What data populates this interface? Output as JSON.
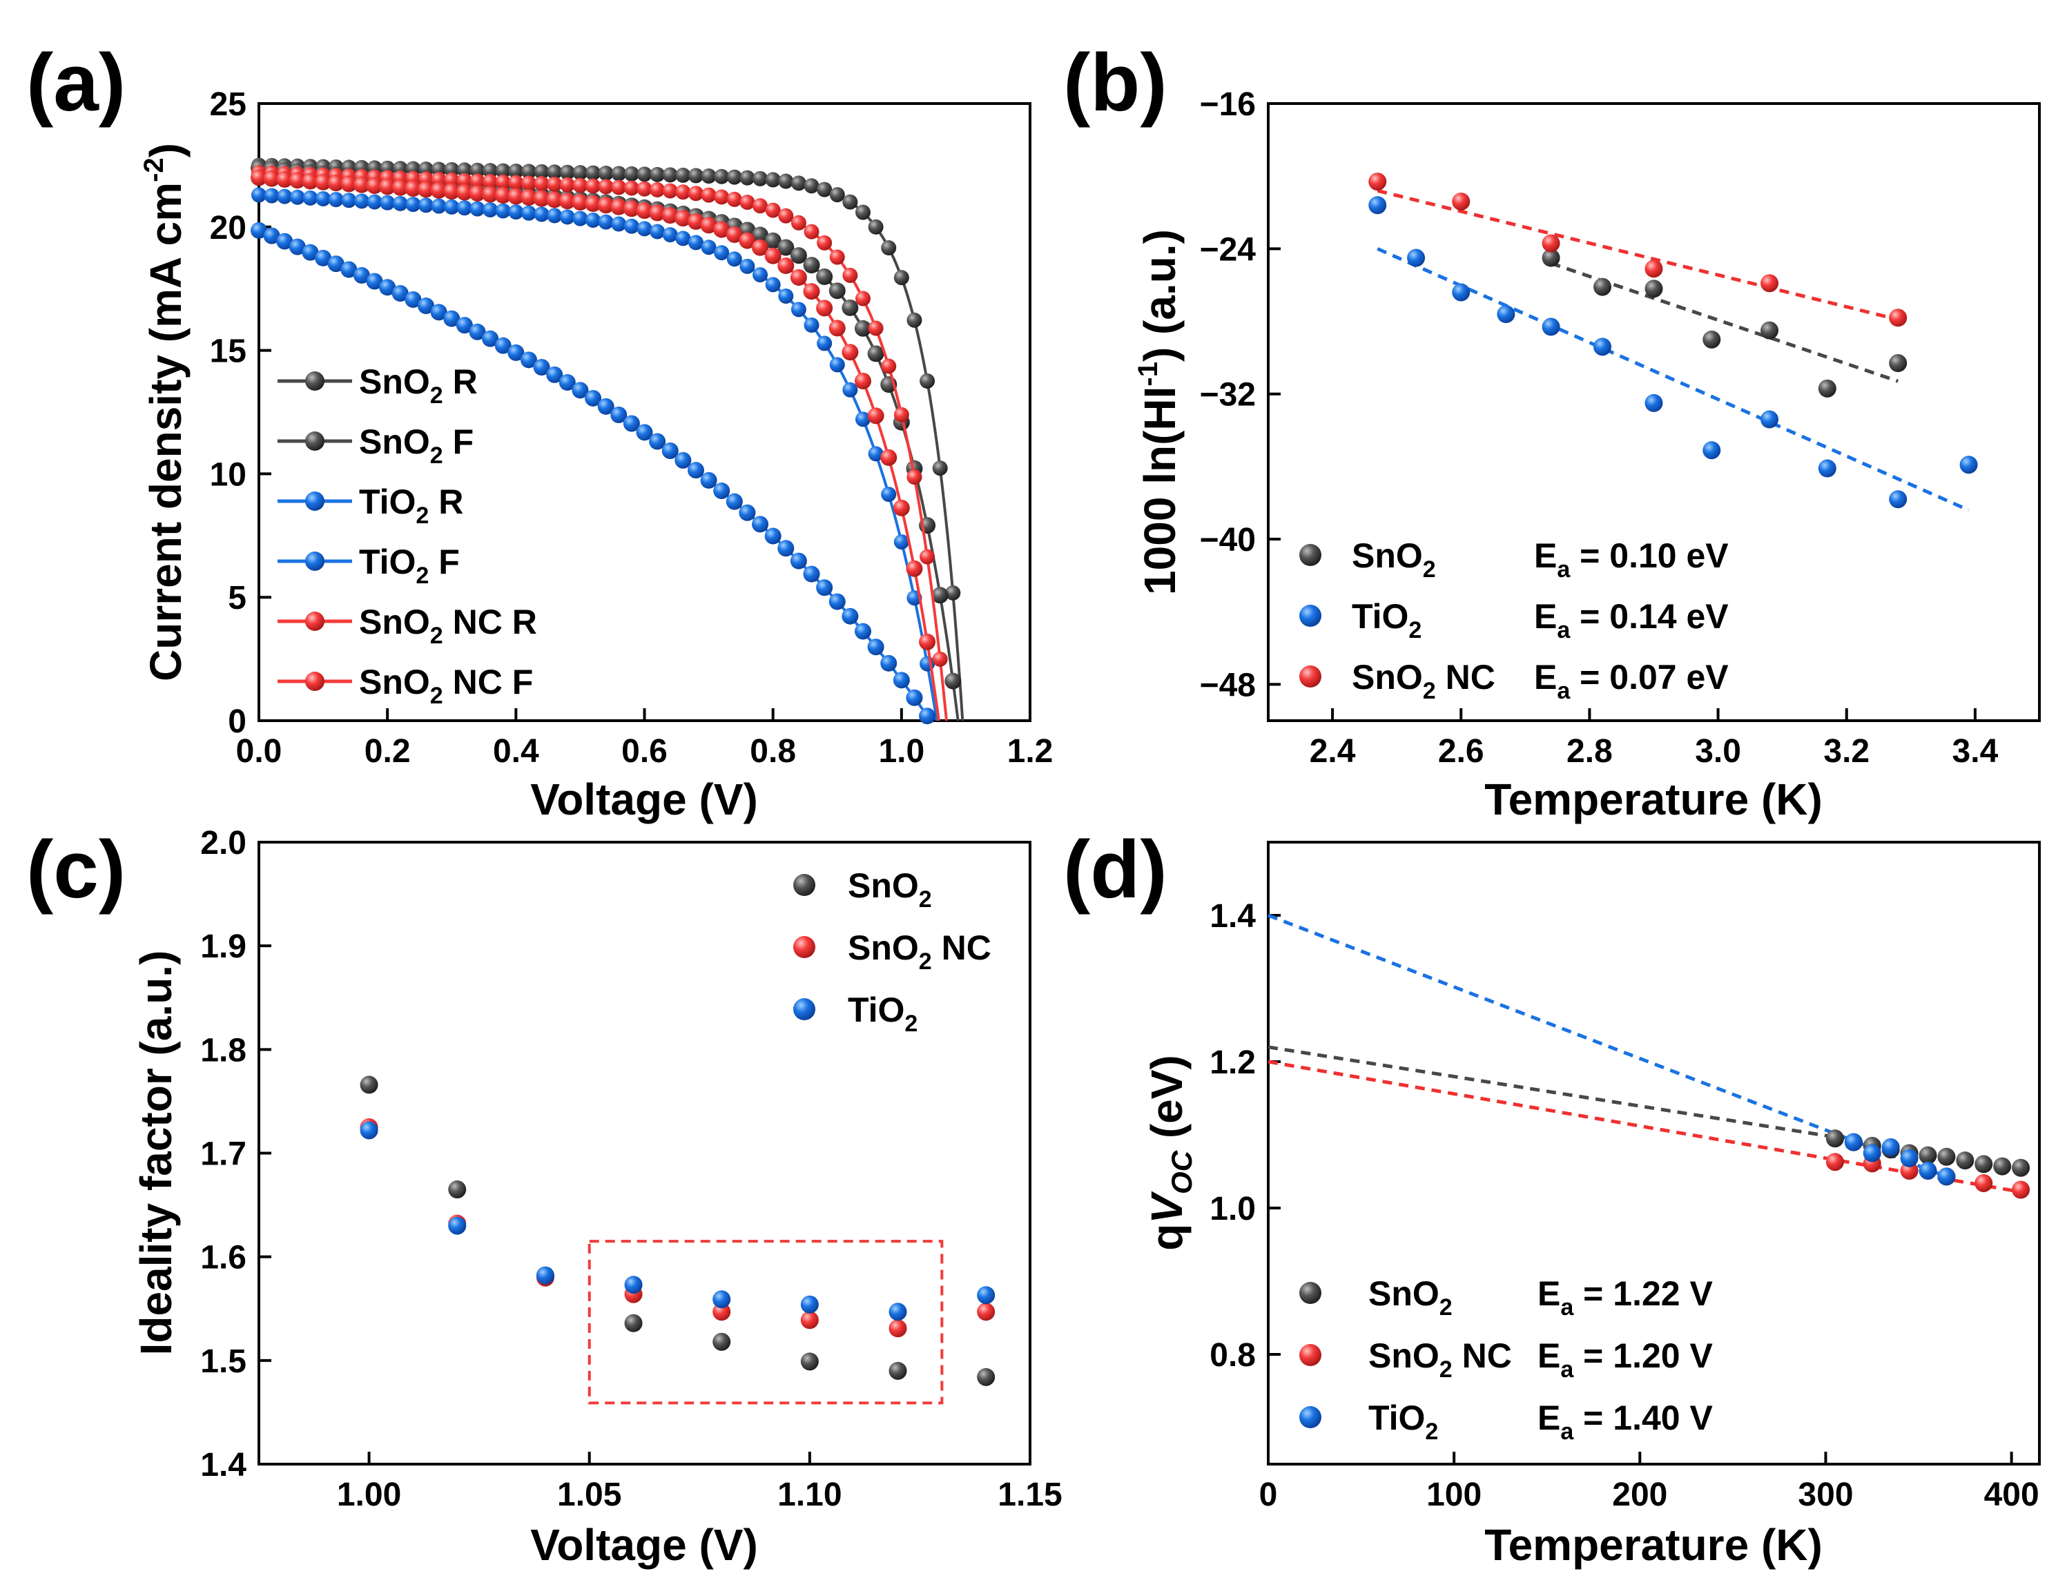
{
  "colors": {
    "black": "#484848",
    "blue": "#1a72e2",
    "red": "#f43a3a",
    "red_line": "#f03030",
    "box": "#f03c3c"
  },
  "chart_data": [
    {
      "id": "a",
      "panel_label": "(a)",
      "type": "line",
      "title": "",
      "xlabel": "Voltage (V)",
      "ylabel": "Current density (mA cm-2)",
      "ylabel_parts": [
        "Current density (mA cm",
        "-2",
        ")"
      ],
      "xlim": [
        0,
        1.2
      ],
      "ylim": [
        0,
        25
      ],
      "xticks": [
        0.0,
        0.2,
        0.4,
        0.6,
        0.8,
        1.0,
        1.2
      ],
      "xtick_labels": [
        "0.0",
        "0.2",
        "0.4",
        "0.6",
        "0.8",
        "1.0",
        "1.2"
      ],
      "yticks": [
        0,
        5,
        10,
        15,
        20,
        25
      ],
      "ytick_labels": [
        "0",
        "5",
        "10",
        "15",
        "20",
        "25"
      ],
      "legend_position": "lower-left",
      "series": [
        {
          "name": "SnO2 R",
          "label_main": "SnO",
          "label_sub": "2",
          "label_rest": " R",
          "color": "black",
          "marker": "sphere",
          "params": {
            "jsc": 22.5,
            "slope": 0.6,
            "voc": 1.095,
            "k": 18
          }
        },
        {
          "name": "SnO2 F",
          "label_main": "SnO",
          "label_sub": "2",
          "label_rest": " F",
          "color": "black",
          "marker": "sphere-solid",
          "params": {
            "jsc": 22.4,
            "slope": 2.5,
            "voc": 1.088,
            "k": 10.5
          }
        },
        {
          "name": "TiO2 R",
          "label_main": "TiO",
          "label_sub": "2",
          "label_rest": "  R",
          "color": "blue",
          "marker": "sphere",
          "params": {
            "jsc": 21.3,
            "slope": 1.5,
            "voc": 1.055,
            "k": 8.2
          }
        },
        {
          "name": "TiO2 F",
          "label_main": "TiO",
          "label_sub": "2",
          "label_rest": "  F",
          "color": "blue",
          "marker": "sphere-solid",
          "params": {
            "jsc": 20.6,
            "slope": 9.0,
            "voc": 1.045,
            "k": 2.6
          }
        },
        {
          "name": "SnO2 NC R",
          "label_main": "SnO",
          "label_sub": "2",
          "label_rest": " NC R",
          "color": "red",
          "marker": "sphere",
          "params": {
            "jsc": 22.2,
            "slope": 1.0,
            "voc": 1.07,
            "k": 12.5
          }
        },
        {
          "name": "SnO2 NC F",
          "label_main": "SnO",
          "label_sub": "2",
          "label_rest": " NC F",
          "color": "red",
          "marker": "sphere-solid",
          "params": {
            "jsc": 22.0,
            "slope": 1.8,
            "voc": 1.058,
            "k": 9.5
          }
        }
      ]
    },
    {
      "id": "b",
      "panel_label": "(b)",
      "type": "scatter",
      "title": "",
      "xlabel": "Temperature (K)",
      "ylabel": "1000 ln(HI-1) (a.u.)",
      "ylabel_parts": [
        "1000 ln(HI",
        "-1",
        ") (a.u.)"
      ],
      "xlim": [
        2.3,
        3.5
      ],
      "ylim": [
        -50,
        -16
      ],
      "xticks": [
        2.4,
        2.6,
        2.8,
        3.0,
        3.2,
        3.4
      ],
      "xtick_labels": [
        "2.4",
        "2.6",
        "2.8",
        "3.0",
        "3.2",
        "3.4"
      ],
      "yticks": [
        -16,
        -24,
        -32,
        -40,
        -48
      ],
      "ytick_labels": [
        "−16",
        "−24",
        "−32",
        "−40",
        "−48"
      ],
      "legend_position": "lower-left",
      "series": [
        {
          "name": "SnO2",
          "label_main": "SnO",
          "label_sub": "2",
          "label_rest": "",
          "ea": "E",
          "ea_sub": "a",
          "ea_rest": " = 0.10 eV",
          "color": "black",
          "x": [
            2.74,
            2.82,
            2.9,
            2.99,
            3.08,
            3.17,
            3.28
          ],
          "y": [
            -24.5,
            -26.1,
            -26.2,
            -29.0,
            -28.5,
            -31.7,
            -30.3
          ],
          "fit": [
            [
              2.74,
              -24.8
            ],
            [
              3.28,
              -31.3
            ]
          ]
        },
        {
          "name": "TiO2",
          "label_main": "TiO",
          "label_sub": "2",
          "label_rest": "",
          "ea": "E",
          "ea_sub": "a",
          "ea_rest": " = 0.14 eV",
          "color": "blue",
          "x": [
            2.47,
            2.53,
            2.6,
            2.67,
            2.74,
            2.82,
            2.9,
            2.99,
            3.08,
            3.17,
            3.28,
            3.39
          ],
          "y": [
            -21.6,
            -24.5,
            -26.4,
            -27.6,
            -28.3,
            -29.4,
            -32.5,
            -35.1,
            -33.4,
            -36.1,
            -37.8,
            -35.9
          ],
          "fit": [
            [
              2.47,
              -24.0
            ],
            [
              3.39,
              -38.4
            ]
          ]
        },
        {
          "name": "SnO2 NC",
          "label_main": "SnO",
          "label_sub": "2",
          "label_rest": " NC",
          "ea": "E",
          "ea_sub": "a",
          "ea_rest": " = 0.07 eV",
          "color": "red",
          "x": [
            2.47,
            2.6,
            2.74,
            2.9,
            3.08,
            3.28
          ],
          "y": [
            -20.3,
            -21.4,
            -23.7,
            -25.1,
            -25.9,
            -27.8
          ],
          "fit": [
            [
              2.47,
              -20.8
            ],
            [
              3.28,
              -27.9
            ]
          ]
        }
      ]
    },
    {
      "id": "c",
      "panel_label": "(c)",
      "type": "scatter",
      "title": "",
      "xlabel": "Voltage (V)",
      "ylabel": "Ideality factor (a.u.)",
      "xlim": [
        0.975,
        1.15
      ],
      "ylim": [
        1.4,
        2.0
      ],
      "xticks": [
        1.0,
        1.05,
        1.1,
        1.15
      ],
      "xtick_labels": [
        "1.00",
        "1.05",
        "1.10",
        "1.15"
      ],
      "yticks": [
        1.4,
        1.5,
        1.6,
        1.7,
        1.8,
        1.9,
        2.0
      ],
      "ytick_labels": [
        "1.4",
        "1.5",
        "1.6",
        "1.7",
        "1.8",
        "1.9",
        "2.0"
      ],
      "legend_position": "top-right",
      "highlight_box": {
        "x": [
          1.05,
          1.13
        ],
        "y": [
          1.459,
          1.615
        ]
      },
      "series": [
        {
          "name": "SnO2",
          "label_main": "SnO",
          "label_sub": "2",
          "label_rest": "",
          "color": "black",
          "x": [
            1.0,
            1.02,
            1.04,
            1.06,
            1.08,
            1.1,
            1.12,
            1.14
          ],
          "y": [
            1.766,
            1.665,
            1.582,
            1.536,
            1.518,
            1.499,
            1.49,
            1.484
          ]
        },
        {
          "name": "SnO2 NC",
          "label_main": "SnO",
          "label_sub": "2",
          "label_rest": " NC",
          "color": "red",
          "x": [
            1.0,
            1.02,
            1.04,
            1.06,
            1.08,
            1.1,
            1.12,
            1.14
          ],
          "y": [
            1.725,
            1.632,
            1.58,
            1.564,
            1.547,
            1.539,
            1.531,
            1.547
          ]
        },
        {
          "name": "TiO2",
          "label_main": "TiO",
          "label_sub": "2",
          "label_rest": "",
          "color": "blue",
          "x": [
            1.0,
            1.02,
            1.04,
            1.06,
            1.08,
            1.1,
            1.12,
            1.14
          ],
          "y": [
            1.722,
            1.63,
            1.582,
            1.573,
            1.559,
            1.554,
            1.547,
            1.563
          ]
        }
      ]
    },
    {
      "id": "d",
      "panel_label": "(d)",
      "type": "scatter",
      "title": "",
      "xlabel": "Temperature (K)",
      "ylabel": "qVOC (eV)",
      "ylabel_parts": [
        "q",
        "V",
        "OC",
        " (eV)"
      ],
      "xlim": [
        0,
        415
      ],
      "ylim": [
        0.65,
        1.5
      ],
      "xticks": [
        0,
        100,
        200,
        300,
        400
      ],
      "xtick_labels": [
        "0",
        "100",
        "200",
        "300",
        "400"
      ],
      "yticks": [
        0.8,
        1.0,
        1.2,
        1.4
      ],
      "ytick_labels": [
        "0.8",
        "1.0",
        "1.2",
        "1.4"
      ],
      "legend_position": "lower-left",
      "series": [
        {
          "name": "SnO2",
          "label_main": "SnO",
          "label_sub": "2",
          "label_rest": "",
          "ea": "E",
          "ea_sub": "a",
          "ea_rest": " = 1.22 V",
          "color": "black",
          "x": [
            305,
            315,
            325,
            335,
            345,
            355,
            365,
            375,
            385,
            395,
            405
          ],
          "y": [
            1.095,
            1.09,
            1.085,
            1.08,
            1.075,
            1.072,
            1.07,
            1.065,
            1.06,
            1.057,
            1.055
          ],
          "fit": [
            [
              0,
              1.22
            ],
            [
              305,
              1.097
            ]
          ]
        },
        {
          "name": "SnO2 NC",
          "label_main": "SnO",
          "label_sub": "2",
          "label_rest": " NC",
          "ea": "E",
          "ea_sub": "a",
          "ea_rest": " = 1.20 V",
          "color": "red",
          "x": [
            305,
            325,
            345,
            365,
            385,
            405
          ],
          "y": [
            1.063,
            1.061,
            1.051,
            1.043,
            1.034,
            1.025
          ],
          "fit": [
            [
              0,
              1.2
            ],
            [
              405,
              1.022
            ]
          ]
        },
        {
          "name": "TiO2",
          "label_main": "TiO",
          "label_sub": "2",
          "label_rest": "",
          "ea": "E",
          "ea_sub": "a",
          "ea_rest": " = 1.40 V",
          "color": "blue",
          "x": [
            315,
            325,
            335,
            345,
            355,
            365
          ],
          "y": [
            1.09,
            1.075,
            1.083,
            1.068,
            1.051,
            1.043
          ],
          "fit": [
            [
              0,
              1.4
            ],
            [
              365,
              1.043
            ]
          ]
        }
      ]
    }
  ]
}
